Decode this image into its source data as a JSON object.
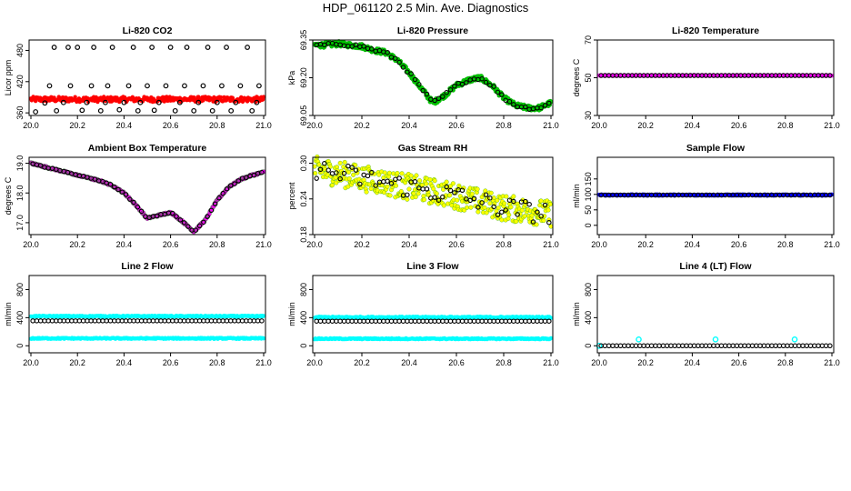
{
  "title": "HDP_061120  2.5 Min. Ave. Diagnostics",
  "chart_data": [
    {
      "id": "co2",
      "type": "scatter",
      "title": "Li-820 CO2",
      "ylabel": "Licor ppm",
      "xlim": [
        20.0,
        21.0
      ],
      "ylim": [
        355,
        500
      ],
      "xticks": [
        20.0,
        20.2,
        20.4,
        20.6,
        20.8,
        21.0
      ],
      "xtick_labels": [
        "20.0",
        "20.2",
        "20.4",
        "20.6",
        "20.8",
        "21.0"
      ],
      "yticks": [
        360,
        420,
        480
      ],
      "ytick_labels": [
        "360",
        "420",
        "480"
      ],
      "series": [
        {
          "style": "red-dense",
          "color": "#ff0000",
          "band": [
            386,
            5
          ]
        },
        {
          "style": "black-open",
          "color": "#000000",
          "x": [
            20.02,
            20.06,
            20.08,
            20.1,
            20.11,
            20.14,
            20.16,
            20.17,
            20.2,
            20.22,
            20.24,
            20.26,
            20.27,
            20.3,
            20.32,
            20.33,
            20.35,
            20.38,
            20.4,
            20.42,
            20.44,
            20.46,
            20.47,
            20.5,
            20.52,
            20.53,
            20.55,
            20.58,
            20.6,
            20.62,
            20.64,
            20.66,
            20.67,
            20.7,
            20.72,
            20.74,
            20.76,
            20.78,
            20.8,
            20.82,
            20.84,
            20.86,
            20.88,
            20.9,
            20.93,
            20.95,
            20.97,
            20.98
          ],
          "y": [
            362,
            379,
            412,
            486,
            364,
            380,
            486,
            412,
            486,
            365,
            380,
            412,
            486,
            364,
            380,
            412,
            486,
            366,
            380,
            412,
            486,
            364,
            380,
            412,
            486,
            365,
            380,
            412,
            486,
            364,
            380,
            412,
            486,
            364,
            380,
            412,
            486,
            364,
            380,
            412,
            486,
            364,
            380,
            412,
            486,
            364,
            380,
            412
          ]
        }
      ]
    },
    {
      "id": "pressure",
      "type": "scatter",
      "title": "Li-820 Pressure",
      "ylabel": "kPa",
      "xlim": [
        20.0,
        21.0
      ],
      "ylim": [
        69.05,
        69.35
      ],
      "xticks": [
        20.0,
        20.2,
        20.4,
        20.6,
        20.8,
        21.0
      ],
      "xtick_labels": [
        "20.0",
        "20.2",
        "20.4",
        "20.6",
        "20.8",
        "21.0"
      ],
      "yticks": [
        69.05,
        69.2,
        69.35
      ],
      "ytick_labels": [
        "69.05",
        "69.20",
        "69.35"
      ],
      "series": [
        {
          "style": "green-curve",
          "color": "#00cc00",
          "x": [
            20.0,
            20.05,
            20.1,
            20.15,
            20.2,
            20.25,
            20.3,
            20.35,
            20.4,
            20.45,
            20.5,
            20.55,
            20.6,
            20.65,
            20.7,
            20.75,
            20.8,
            20.85,
            20.9,
            20.95,
            21.0
          ],
          "y": [
            69.33,
            69.33,
            69.335,
            69.33,
            69.325,
            69.31,
            69.3,
            69.27,
            69.22,
            69.16,
            69.1,
            69.13,
            69.17,
            69.19,
            69.2,
            69.17,
            69.12,
            69.09,
            69.08,
            69.08,
            69.1
          ],
          "spread": 0.01
        },
        {
          "style": "black-open-curve",
          "color": "#000000",
          "count": 60,
          "spread": 0.006
        }
      ]
    },
    {
      "id": "temperature",
      "type": "scatter",
      "title": "Li-820 Temperature",
      "ylabel": "degrees C",
      "xlim": [
        20.0,
        21.0
      ],
      "ylim": [
        30,
        70
      ],
      "xticks": [
        20.0,
        20.2,
        20.4,
        20.6,
        20.8,
        21.0
      ],
      "xtick_labels": [
        "20.0",
        "20.2",
        "20.4",
        "20.6",
        "20.8",
        "21.0"
      ],
      "yticks": [
        30,
        50,
        70
      ],
      "ytick_labels": [
        "30",
        "50",
        "70"
      ],
      "series": [
        {
          "style": "magenta-line",
          "color": "#ff00ff",
          "band": [
            51.2,
            0.1
          ]
        },
        {
          "style": "black-open",
          "color": "#000000",
          "const": 51.2,
          "count": 60
        }
      ]
    },
    {
      "id": "ambient",
      "type": "scatter",
      "title": "Ambient Box Temperature",
      "ylabel": "degrees C",
      "xlim": [
        20.0,
        21.0
      ],
      "ylim": [
        16.6,
        19.2
      ],
      "xticks": [
        20.0,
        20.2,
        20.4,
        20.6,
        20.8,
        21.0
      ],
      "xtick_labels": [
        "20.0",
        "20.2",
        "20.4",
        "20.6",
        "20.8",
        "21.0"
      ],
      "yticks": [
        17.0,
        18.0,
        19.0
      ],
      "ytick_labels": [
        "17.0",
        "18.0",
        "19.0"
      ],
      "series": [
        {
          "style": "magenta-curve",
          "color": "#ff00ff",
          "x": [
            20.0,
            20.05,
            20.1,
            20.15,
            20.2,
            20.25,
            20.3,
            20.35,
            20.4,
            20.45,
            20.5,
            20.55,
            20.6,
            20.65,
            20.7,
            20.75,
            20.8,
            20.85,
            20.9,
            20.95,
            21.0
          ],
          "y": [
            19.0,
            18.9,
            18.8,
            18.7,
            18.6,
            18.5,
            18.4,
            18.25,
            18.0,
            17.6,
            17.15,
            17.25,
            17.35,
            17.05,
            16.7,
            17.1,
            17.75,
            18.2,
            18.45,
            18.6,
            18.7
          ],
          "spread": 0.03
        },
        {
          "style": "black-open-curve",
          "color": "#000000",
          "count": 60,
          "spread": 0.02
        }
      ]
    },
    {
      "id": "rh",
      "type": "scatter",
      "title": "Gas Stream RH",
      "ylabel": "percent",
      "xlim": [
        20.0,
        21.0
      ],
      "ylim": [
        0.18,
        0.31
      ],
      "xticks": [
        20.0,
        20.2,
        20.4,
        20.6,
        20.8,
        21.0
      ],
      "xtick_labels": [
        "20.0",
        "20.2",
        "20.4",
        "20.6",
        "20.8",
        "21.0"
      ],
      "yticks": [
        0.18,
        0.24,
        0.3
      ],
      "ytick_labels": [
        "0.18",
        "0.24",
        "0.30"
      ],
      "series": [
        {
          "style": "yellow-scatter",
          "color": "#ffff00",
          "x": [
            20.0,
            20.2,
            20.4,
            20.6,
            20.8,
            21.0
          ],
          "y": [
            0.29,
            0.275,
            0.26,
            0.245,
            0.225,
            0.215
          ],
          "spread": 0.022
        },
        {
          "style": "black-open-scatter",
          "color": "#000000",
          "count": 60,
          "spread": 0.018
        }
      ]
    },
    {
      "id": "sample",
      "type": "scatter",
      "title": "Sample Flow",
      "ylabel": "ml/min",
      "xlim": [
        20.0,
        21.0
      ],
      "ylim": [
        -30,
        220
      ],
      "xticks": [
        20.0,
        20.2,
        20.4,
        20.6,
        20.8,
        21.0
      ],
      "xtick_labels": [
        "20.0",
        "20.2",
        "20.4",
        "20.6",
        "20.8",
        "21.0"
      ],
      "yticks": [
        0,
        50,
        100,
        150
      ],
      "ytick_labels": [
        "0",
        "50",
        "100",
        "150"
      ],
      "series": [
        {
          "style": "blue-line",
          "color": "#0000ff",
          "band": [
            98,
            2
          ]
        },
        {
          "style": "black-open",
          "color": "#000000",
          "const": 98,
          "count": 60
        }
      ]
    },
    {
      "id": "line2",
      "type": "scatter",
      "title": "Line 2 Flow",
      "ylabel": "ml/min",
      "xlim": [
        20.0,
        21.0
      ],
      "ylim": [
        -100,
        1000
      ],
      "xticks": [
        20.0,
        20.2,
        20.4,
        20.6,
        20.8,
        21.0
      ],
      "xtick_labels": [
        "20.0",
        "20.2",
        "20.4",
        "20.6",
        "20.8",
        "21.0"
      ],
      "yticks": [
        0,
        400,
        800
      ],
      "ytick_labels": [
        "0",
        "400",
        "800"
      ],
      "series": [
        {
          "style": "cyan-line",
          "color": "#00ffff",
          "band": [
            420,
            8
          ]
        },
        {
          "style": "cyan-line",
          "color": "#00ffff",
          "band": [
            105,
            8
          ]
        },
        {
          "style": "black-open",
          "color": "#000000",
          "const": 355,
          "count": 60
        }
      ]
    },
    {
      "id": "line3",
      "type": "scatter",
      "title": "Line 3 Flow",
      "ylabel": "ml/min",
      "xlim": [
        20.0,
        21.0
      ],
      "ylim": [
        -100,
        1000
      ],
      "xticks": [
        20.0,
        20.2,
        20.4,
        20.6,
        20.8,
        21.0
      ],
      "xtick_labels": [
        "20.0",
        "20.2",
        "20.4",
        "20.6",
        "20.8",
        "21.0"
      ],
      "yticks": [
        0,
        400,
        800
      ],
      "ytick_labels": [
        "0",
        "400",
        "800"
      ],
      "series": [
        {
          "style": "cyan-line",
          "color": "#00ffff",
          "band": [
            405,
            10
          ]
        },
        {
          "style": "cyan-line",
          "color": "#00ffff",
          "band": [
            100,
            8
          ]
        },
        {
          "style": "black-open",
          "color": "#000000",
          "const": 350,
          "count": 60
        }
      ]
    },
    {
      "id": "line4",
      "type": "scatter",
      "title": "Line 4 (LT) Flow",
      "ylabel": "ml/min",
      "xlim": [
        20.0,
        21.0
      ],
      "ylim": [
        -100,
        1000
      ],
      "xticks": [
        20.0,
        20.2,
        20.4,
        20.6,
        20.8,
        21.0
      ],
      "xtick_labels": [
        "20.0",
        "20.2",
        "20.4",
        "20.6",
        "20.8",
        "21.0"
      ],
      "yticks": [
        0,
        400,
        800
      ],
      "ytick_labels": [
        "0",
        "400",
        "800"
      ],
      "series": [
        {
          "style": "cyan-points",
          "color": "#00ffff",
          "x": [
            20.0,
            20.17,
            20.5,
            20.84
          ],
          "y": [
            0,
            90,
            90,
            90
          ]
        },
        {
          "style": "black-open",
          "color": "#000000",
          "const": 0,
          "count": 60
        }
      ]
    }
  ]
}
